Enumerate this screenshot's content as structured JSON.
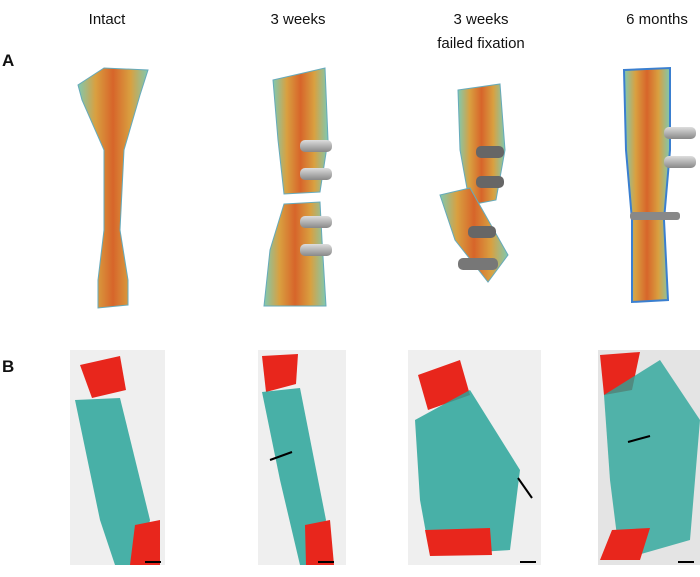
{
  "figure": {
    "columns": [
      [
        "Intact"
      ],
      [
        "3 weeks"
      ],
      [
        "3 weeks",
        "failed fixation"
      ],
      [
        "6 months"
      ]
    ],
    "panels": [
      "A",
      "B"
    ]
  }
}
